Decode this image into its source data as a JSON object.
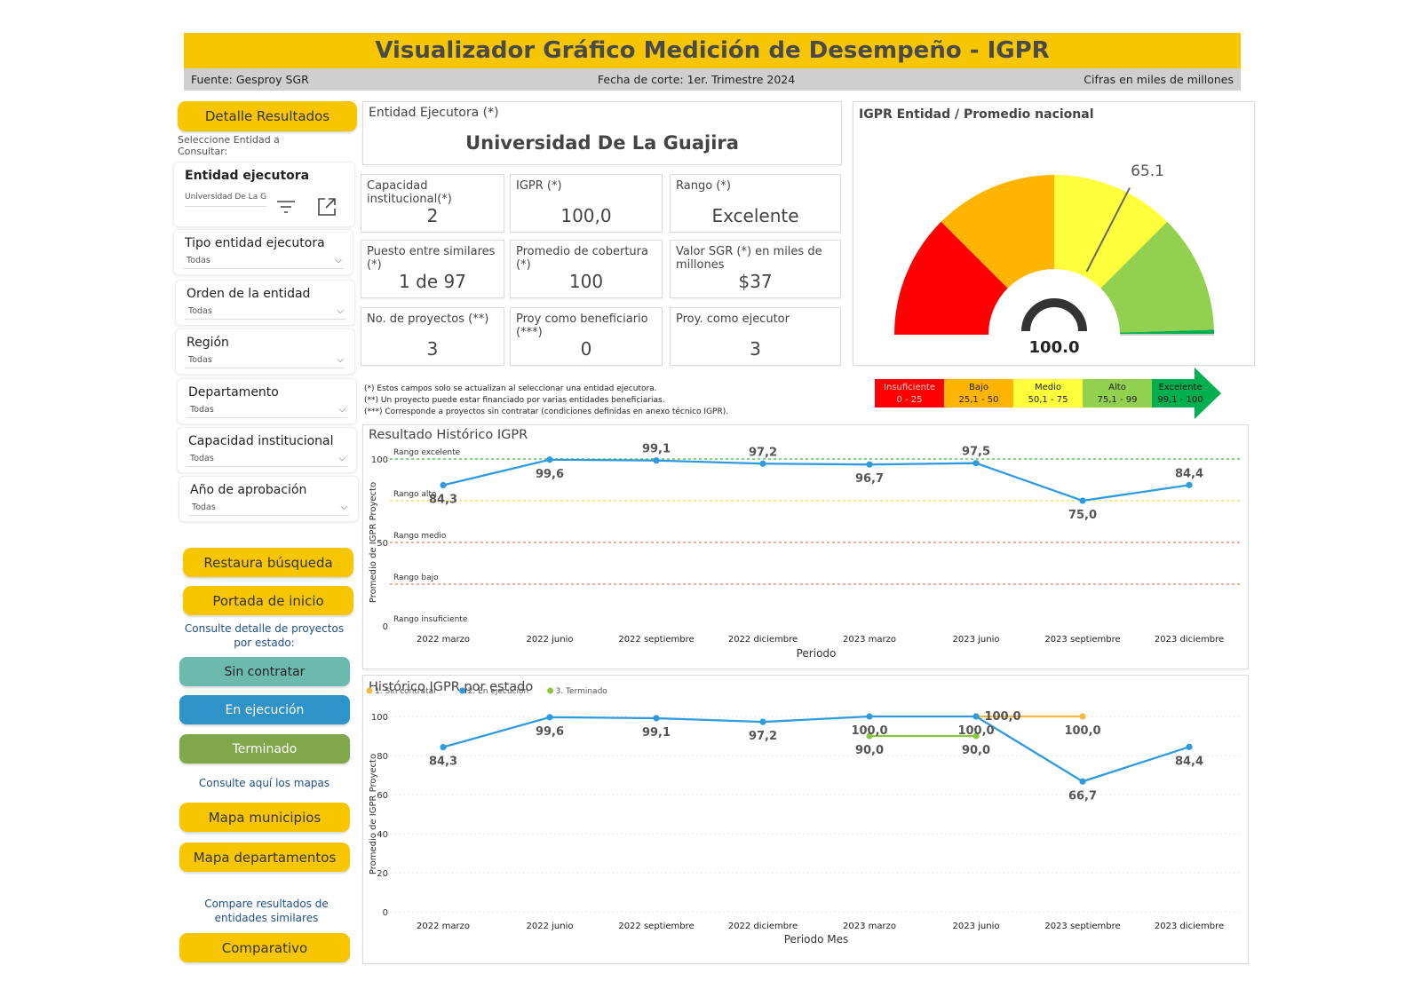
{
  "header": {
    "title": "Visualizador Gráfico Medición de Desempeño - IGPR",
    "source": "Fuente: Gesproy SGR",
    "cutoff": "Fecha de corte: 1er. Trimestre 2024",
    "units": "Cifras en miles de millones"
  },
  "sidebar": {
    "detail_button": "Detalle Resultados",
    "select_hint": "Seleccione Entidad a Consultar:",
    "entity_filter": {
      "title": "Entidad ejecutora",
      "value": "Universidad De La G"
    },
    "filters": [
      {
        "title": "Tipo entidad ejecutora",
        "value": "Todas"
      },
      {
        "title": "Orden de la entidad",
        "value": "Todas"
      },
      {
        "title": "Región",
        "value": "Todas"
      },
      {
        "title": "Departamento",
        "value": "Todas"
      },
      {
        "title": "Capacidad institucional",
        "value": "Todas"
      },
      {
        "title": "Año de aprobación",
        "value": "Todas"
      }
    ],
    "restore_button": "Restaura búsqueda",
    "home_button": "Portada de inicio",
    "state_hint": "Consulte detalle de proyectos por estado:",
    "state_buttons": [
      {
        "label": "Sin contratar",
        "color": "#6cb9ae"
      },
      {
        "label": "En ejecución",
        "color": "#2e93c9"
      },
      {
        "label": "Terminado",
        "color": "#7fa84a"
      }
    ],
    "maps_hint": "Consulte aquí los mapas",
    "map_mun_button": "Mapa municipios",
    "map_dep_button": "Mapa departamentos",
    "compare_hint": "Compare resultados de entidades similares",
    "compare_button": "Comparativo"
  },
  "entity": {
    "label": "Entidad Ejecutora (*)",
    "name": "Universidad De La Guajira"
  },
  "kpis": [
    {
      "label": "Capacidad institucional(*)",
      "value": "2"
    },
    {
      "label": "IGPR (*)",
      "value": "100,0"
    },
    {
      "label": "Rango (*)",
      "value": "Excelente"
    },
    {
      "label": "Puesto entre similares (*)",
      "value": "1 de 97"
    },
    {
      "label": "Promedio de cobertura (*)",
      "value": "100"
    },
    {
      "label": "Valor SGR (*) en miles de millones",
      "value": "$37"
    },
    {
      "label": "No. de proyectos (**)",
      "value": "3"
    },
    {
      "label": "Proy como beneficiario (***)",
      "value": "0"
    },
    {
      "label": "Proy. como ejecutor",
      "value": "3"
    }
  ],
  "notes": [
    "(*) Estos campos solo se actualizan al seleccionar una entidad ejecutora.",
    "(**) Un proyecto puede estar financiado por varias entidades beneficiarias.",
    "(***) Corresponde a proyectos sin contratar (condiciones definidas en anexo técnico IGPR)."
  ],
  "gauge": {
    "title": "IGPR Entidad / Promedio nacional",
    "value": 100.0,
    "value_label": "100.0",
    "national_avg": 65.1,
    "national_label": "65.1",
    "min": 0,
    "max": 100,
    "bands": [
      {
        "from": 0,
        "to": 25,
        "color": "#ff0000"
      },
      {
        "from": 25,
        "to": 50,
        "color": "#ffb400"
      },
      {
        "from": 50,
        "to": 75,
        "color": "#ffff3c"
      },
      {
        "from": 75,
        "to": 99,
        "color": "#92d050"
      },
      {
        "from": 99,
        "to": 100,
        "color": "#00b050"
      }
    ]
  },
  "legend_scale": [
    {
      "name": "Insuficiente",
      "range": "0 - 25",
      "color": "#ff0000",
      "text_color": "#ffd0d0"
    },
    {
      "name": "Bajo",
      "range": "25,1 - 50",
      "color": "#ffb400",
      "text_color": "#222222"
    },
    {
      "name": "Medio",
      "range": "50,1 - 75",
      "color": "#ffff3c",
      "text_color": "#222222"
    },
    {
      "name": "Alto",
      "range": "75,1 - 99",
      "color": "#92d050",
      "text_color": "#222222"
    },
    {
      "name": "Excelente",
      "range": "99,1 - 100",
      "color": "#00b050",
      "text_color": "#111111"
    }
  ],
  "chart_data": [
    {
      "type": "line",
      "title": "Resultado Histórico IGPR",
      "xlabel": "Periodo",
      "ylabel": "Promedio de IGPR Proyecto",
      "ylim": [
        0,
        100
      ],
      "yticks": [
        0,
        50,
        100
      ],
      "categories": [
        "2022 marzo",
        "2022 junio",
        "2022 septiembre",
        "2022 diciembre",
        "2023 marzo",
        "2023 junio",
        "2023 septiembre",
        "2023 diciembre"
      ],
      "series": [
        {
          "values": [
            84.3,
            99.6,
            99.1,
            97.2,
            96.7,
            97.5,
            75.0,
            84.4
          ],
          "labels": [
            "84,3",
            "99,6",
            "99,1",
            "97,2",
            "96,7",
            "97,5",
            "75,0",
            "84,4"
          ],
          "color": "#2e9be0"
        }
      ],
      "reference_lines": [
        {
          "value": 100,
          "label": "Rango excelente",
          "color": "#5cc85c"
        },
        {
          "value": 75,
          "label": "Rango alto",
          "color": "#f0e060"
        },
        {
          "value": 50,
          "label": "Rango medio",
          "color": "#f0907a"
        },
        {
          "value": 25,
          "label": "Rango bajo",
          "color": "#f0907a"
        },
        {
          "value": 0,
          "label": "Rango insuficiente",
          "color": "#ffffff"
        }
      ]
    },
    {
      "type": "line",
      "title": "Histórico IGPR por estado",
      "xlabel": "Periodo Mes",
      "ylabel": "Promedio de IGPR Proyecto",
      "ylim": [
        0,
        100
      ],
      "yticks": [
        0,
        20,
        40,
        60,
        80,
        100
      ],
      "legend": "top-left",
      "categories": [
        "2022 marzo",
        "2022 junio",
        "2022 septiembre",
        "2022 diciembre",
        "2023 marzo",
        "2023 junio",
        "2023 septiembre",
        "2023 diciembre"
      ],
      "series": [
        {
          "name": "1. Sin contratar",
          "color": "#f5b942",
          "values": [
            null,
            null,
            null,
            null,
            null,
            100.0,
            100.0,
            null
          ],
          "labels": [
            null,
            null,
            null,
            null,
            null,
            "100,0",
            "100,0",
            null
          ]
        },
        {
          "name": "2. En ejecución",
          "color": "#2e9be0",
          "values": [
            84.3,
            99.6,
            99.1,
            97.2,
            100.0,
            100.0,
            66.7,
            84.4
          ],
          "labels": [
            "84,3",
            "99,6",
            "99,1",
            "97,2",
            "100,0",
            "100,0",
            "66,7",
            "84,4"
          ]
        },
        {
          "name": "3. Terminado",
          "color": "#8cc63f",
          "values": [
            null,
            null,
            null,
            null,
            90.0,
            90.0,
            null,
            null
          ],
          "labels": [
            null,
            null,
            null,
            null,
            "90,0",
            "90,0",
            null,
            null
          ]
        }
      ]
    }
  ]
}
